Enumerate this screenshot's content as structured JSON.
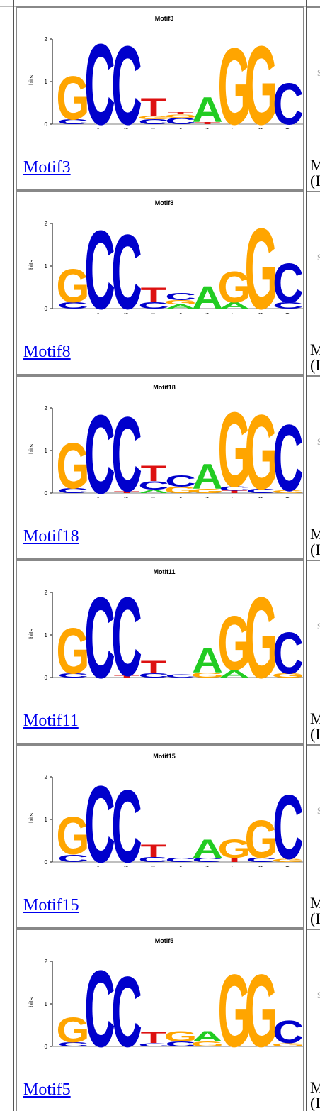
{
  "colors": {
    "A": "#22CC22",
    "C": "#0000CC",
    "G": "#FFA500",
    "T": "#DD1111",
    "link": "#0000EE"
  },
  "axis": {
    "ylabel": "bits",
    "yticks": [
      "0",
      "1",
      "2"
    ],
    "xticks": [
      "1",
      "2",
      "3",
      "4",
      "5",
      "6",
      "7",
      "8",
      "9"
    ]
  },
  "side": {
    "s_char": "s",
    "m_char": "M",
    "paren_char": "(I"
  },
  "motifs": [
    {
      "name": "Motif3",
      "link": "Motif3",
      "columns": [
        [
          [
            "C",
            0.12
          ],
          [
            "G",
            1.05
          ]
        ],
        [
          [
            "C",
            1.95
          ]
        ],
        [
          [
            "C",
            1.9
          ]
        ],
        [
          [
            "C",
            0.12
          ],
          [
            "G",
            0.08
          ],
          [
            "T",
            0.42
          ]
        ],
        [
          [
            "C",
            0.15
          ],
          [
            "G",
            0.08
          ],
          [
            "T",
            0.05
          ]
        ],
        [
          [
            "T",
            0.05
          ],
          [
            "A",
            0.6
          ]
        ],
        [
          [
            "G",
            1.85
          ]
        ],
        [
          [
            "G",
            1.9
          ]
        ],
        [
          [
            "C",
            1.0
          ]
        ]
      ]
    },
    {
      "name": "Motif8",
      "link": "Motif8",
      "columns": [
        [
          [
            "C",
            0.15
          ],
          [
            "G",
            0.8
          ]
        ],
        [
          [
            "C",
            1.9
          ]
        ],
        [
          [
            "C",
            1.8
          ]
        ],
        [
          [
            "C",
            0.15
          ],
          [
            "T",
            0.35
          ]
        ],
        [
          [
            "A",
            0.1
          ],
          [
            "G",
            0.1
          ],
          [
            "C",
            0.18
          ]
        ],
        [
          [
            "A",
            0.55
          ]
        ],
        [
          [
            "A",
            0.15
          ],
          [
            "G",
            0.75
          ]
        ],
        [
          [
            "G",
            1.95
          ]
        ],
        [
          [
            "C",
            0.15
          ],
          [
            "C",
            0.95
          ]
        ]
      ]
    },
    {
      "name": "Motif18",
      "link": "Motif18",
      "columns": [
        [
          [
            "C",
            0.12
          ],
          [
            "G",
            1.1
          ]
        ],
        [
          [
            "C",
            1.9
          ]
        ],
        [
          [
            "T",
            0.05
          ],
          [
            "C",
            1.8
          ]
        ],
        [
          [
            "A",
            0.08
          ],
          [
            "C",
            0.2
          ],
          [
            "T",
            0.38
          ]
        ],
        [
          [
            "G",
            0.15
          ],
          [
            "C",
            0.28
          ]
        ],
        [
          [
            "G",
            0.1
          ],
          [
            "A",
            0.6
          ]
        ],
        [
          [
            "T",
            0.06
          ],
          [
            "C",
            0.1
          ],
          [
            "G",
            1.8
          ]
        ],
        [
          [
            "C",
            0.1
          ],
          [
            "G",
            1.8
          ]
        ],
        [
          [
            "G",
            0.06
          ],
          [
            "C",
            1.6
          ]
        ]
      ]
    },
    {
      "name": "Motif11",
      "link": "Motif11",
      "columns": [
        [
          [
            "C",
            0.1
          ],
          [
            "G",
            1.1
          ]
        ],
        [
          [
            "C",
            1.95
          ]
        ],
        [
          [
            "T",
            0.05
          ],
          [
            "C",
            1.9
          ]
        ],
        [
          [
            "C",
            0.1
          ],
          [
            "T",
            0.3
          ]
        ],
        [
          [
            "C",
            0.08
          ]
        ],
        [
          [
            "G",
            0.12
          ],
          [
            "A",
            0.6
          ]
        ],
        [
          [
            "A",
            0.18
          ],
          [
            "G",
            1.3
          ]
        ],
        [
          [
            "G",
            1.95
          ]
        ],
        [
          [
            "G",
            0.1
          ],
          [
            "C",
            1.0
          ]
        ]
      ]
    },
    {
      "name": "Motif15",
      "link": "Motif15",
      "columns": [
        [
          [
            "C",
            0.18
          ],
          [
            "G",
            0.9
          ]
        ],
        [
          [
            "C",
            1.85
          ]
        ],
        [
          [
            "C",
            1.75
          ]
        ],
        [
          [
            "C",
            0.12
          ],
          [
            "T",
            0.3
          ]
        ],
        [
          [
            "C",
            0.1
          ]
        ],
        [
          [
            "C",
            0.1
          ],
          [
            "A",
            0.45
          ]
        ],
        [
          [
            "T",
            0.1
          ],
          [
            "G",
            0.45
          ]
        ],
        [
          [
            "C",
            0.1
          ],
          [
            "G",
            0.9
          ]
        ],
        [
          [
            "G",
            0.08
          ],
          [
            "C",
            1.55
          ]
        ]
      ]
    },
    {
      "name": "Motif5",
      "link": "Motif5",
      "columns": [
        [
          [
            "C",
            0.1
          ],
          [
            "G",
            0.6
          ]
        ],
        [
          [
            "C",
            1.85
          ]
        ],
        [
          [
            "C",
            1.7
          ]
        ],
        [
          [
            "C",
            0.08
          ],
          [
            "T",
            0.28
          ]
        ],
        [
          [
            "C",
            0.12
          ],
          [
            "G",
            0.25
          ]
        ],
        [
          [
            "G",
            0.12
          ],
          [
            "A",
            0.25
          ]
        ],
        [
          [
            "G",
            1.75
          ]
        ],
        [
          [
            "G",
            1.75
          ]
        ],
        [
          [
            "G",
            0.08
          ],
          [
            "C",
            0.55
          ]
        ]
      ]
    }
  ]
}
